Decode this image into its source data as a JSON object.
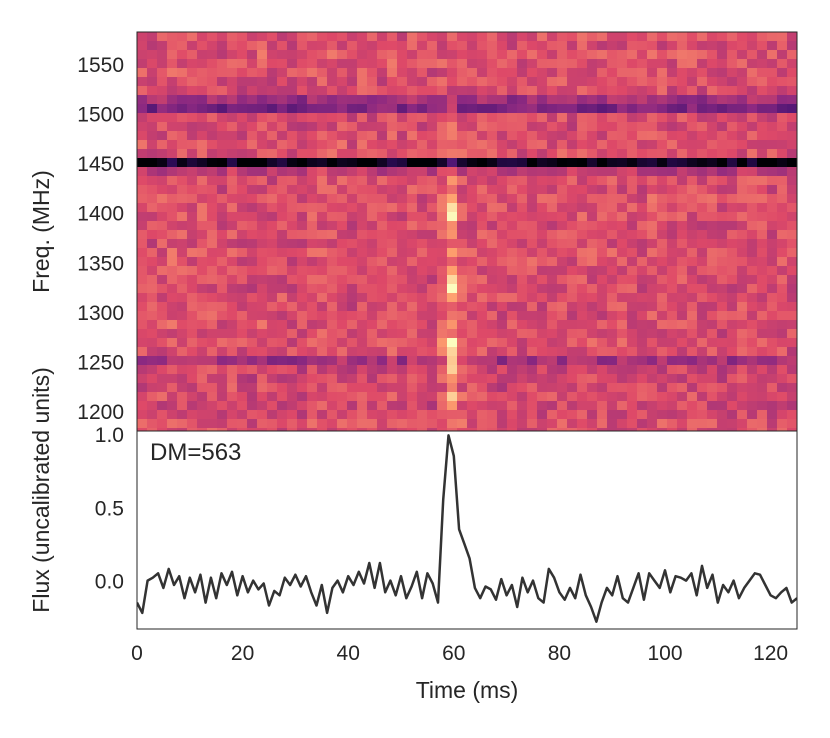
{
  "chart_data": [
    {
      "type": "heatmap",
      "ylabel": "Freq. (MHz)",
      "ylim": [
        1180,
        1582
      ],
      "xlim": [
        0,
        125
      ],
      "y_ticks": [
        1200,
        1250,
        1300,
        1350,
        1400,
        1450,
        1500,
        1550
      ],
      "colormap": [
        "#000004",
        "#3b0f70",
        "#8c2981",
        "#de4968",
        "#fe9f6d",
        "#fcfdbf"
      ],
      "background_level": 0.6,
      "dark_bands_mhz": [
        {
          "freq": 1508,
          "width": 7,
          "depth": 0.28
        },
        {
          "freq": 1451,
          "width": 3.5,
          "depth": 0.5
        },
        {
          "freq": 1446,
          "width": 5,
          "depth": 0.18
        },
        {
          "freq": 1248,
          "width": 3,
          "depth": 0.42
        },
        {
          "freq": 1238,
          "width": 3,
          "depth": 0.2
        },
        {
          "freq": 1228,
          "width": 3,
          "depth": 0.22
        },
        {
          "freq": 1210,
          "width": 3,
          "depth": 0.15
        }
      ],
      "pulse": {
        "time_ms": 59.5,
        "freq_range": [
          1180,
          1510
        ],
        "bright_spots_mhz": [
          1212,
          1246,
          1264,
          1326,
          1400
        ]
      }
    },
    {
      "type": "line",
      "annotation": "DM=563",
      "xlabel": "Time (ms)",
      "ylabel": "Flux (uncalibrated units)",
      "xlim": [
        0,
        125
      ],
      "ylim": [
        -0.33,
        1.02
      ],
      "x_ticks": [
        0,
        20,
        40,
        60,
        80,
        100,
        120
      ],
      "y_ticks": [
        0.0,
        0.5,
        1.0
      ],
      "y_tick_labels": [
        "0.0",
        "0.5",
        "1.0"
      ],
      "line_color": "#333333",
      "series": [
        {
          "x": [
            0,
            1,
            2,
            3,
            4,
            5,
            6,
            7,
            8,
            9,
            10,
            11,
            12,
            13,
            14,
            15,
            16,
            17,
            18,
            19,
            20,
            21,
            22,
            23,
            24,
            25,
            26,
            27,
            28,
            29,
            30,
            31,
            32,
            33,
            34,
            35,
            36,
            37,
            38,
            39,
            40,
            41,
            42,
            43,
            44,
            45,
            46,
            47,
            48,
            49,
            50,
            51,
            52,
            53,
            54,
            55,
            56,
            57,
            58,
            59,
            60,
            61,
            62,
            63,
            64,
            65,
            66,
            67,
            68,
            69,
            70,
            71,
            72,
            73,
            74,
            75,
            76,
            77,
            78,
            79,
            80,
            81,
            82,
            83,
            84,
            85,
            86,
            87,
            88,
            89,
            90,
            91,
            92,
            93,
            94,
            95,
            96,
            97,
            98,
            99,
            100,
            101,
            102,
            103,
            104,
            105,
            106,
            107,
            108,
            109,
            110,
            111,
            112,
            113,
            114,
            115,
            116,
            117,
            118,
            119,
            120,
            121,
            122,
            123,
            124,
            125
          ],
          "values": [
            -0.15,
            -0.22,
            0.0,
            0.02,
            0.05,
            -0.05,
            0.08,
            -0.03,
            0.03,
            -0.12,
            0.02,
            -0.08,
            0.04,
            -0.15,
            0.02,
            -0.12,
            0.05,
            -0.03,
            0.06,
            -0.1,
            0.03,
            -0.08,
            0.0,
            -0.06,
            -0.02,
            -0.17,
            -0.07,
            -0.1,
            0.02,
            -0.03,
            0.04,
            -0.04,
            0.03,
            -0.08,
            -0.17,
            -0.03,
            -0.22,
            -0.05,
            0.0,
            -0.08,
            0.03,
            -0.03,
            0.06,
            -0.02,
            0.12,
            -0.05,
            0.12,
            -0.08,
            0.0,
            -0.1,
            0.03,
            -0.12,
            -0.04,
            0.06,
            -0.12,
            0.05,
            -0.02,
            -0.15,
            0.55,
            0.99,
            0.85,
            0.35,
            0.25,
            0.15,
            -0.05,
            -0.12,
            -0.04,
            -0.06,
            -0.13,
            0.01,
            -0.1,
            -0.03,
            -0.18,
            0.02,
            -0.08,
            0.0,
            -0.12,
            -0.15,
            0.08,
            0.02,
            -0.08,
            -0.13,
            -0.05,
            -0.12,
            0.04,
            -0.1,
            -0.18,
            -0.28,
            -0.15,
            -0.05,
            -0.1,
            0.03,
            -0.12,
            -0.15,
            -0.05,
            0.05,
            -0.13,
            0.05,
            0.0,
            -0.05,
            0.07,
            -0.08,
            0.03,
            0.02,
            0.0,
            0.05,
            -0.1,
            0.1,
            -0.05,
            0.04,
            -0.15,
            -0.03,
            -0.08,
            0.0,
            -0.12,
            -0.05,
            0.0,
            0.05,
            0.04,
            -0.03,
            -0.1,
            -0.12,
            -0.08,
            -0.05,
            -0.15,
            -0.12
          ]
        }
      ]
    }
  ]
}
